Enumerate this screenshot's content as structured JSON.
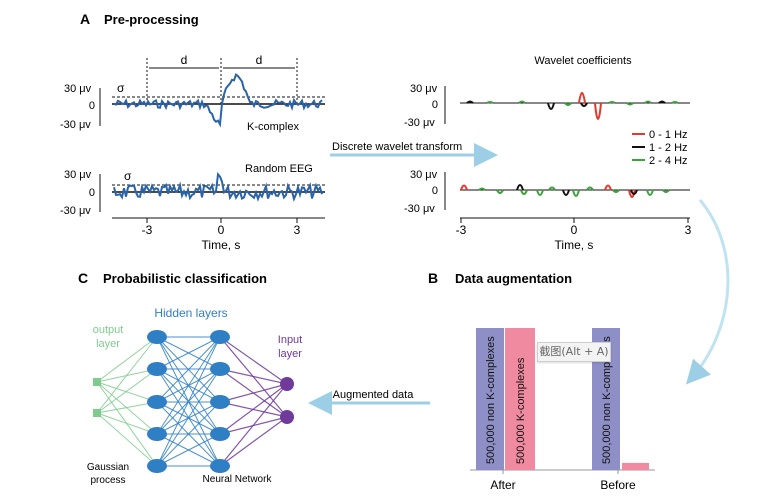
{
  "sections": {
    "a": {
      "letter": "A",
      "title": "Pre-processing"
    },
    "b": {
      "letter": "B",
      "title": "Data augmentation"
    },
    "c": {
      "letter": "C",
      "title": "Probabilistic classification"
    }
  },
  "preprocessing": {
    "distance_label": "d",
    "threshold_label": "σ",
    "y_ticks": [
      "30 μv",
      "0",
      "-30 μv"
    ],
    "x_ticks": [
      "-3",
      "0",
      "3"
    ],
    "x_axis_label": "Time, s",
    "kcomplex_label": "K-complex",
    "random_eeg_label": "Random EEG",
    "transform_label": "Discrete wavelet transform",
    "wavelet_title": "Wavelet coefficients",
    "legend": [
      {
        "label": "0 - 1 Hz",
        "color": "#e8372b"
      },
      {
        "label": "1 - 2 Hz",
        "color": "#111111"
      },
      {
        "label": "2 - 4 Hz",
        "color": "#3aa33a"
      }
    ],
    "signal_color": "#2a63a8"
  },
  "augmentation": {
    "bars": [
      {
        "label": "500,000 non K-complexes",
        "color": "#8e8fc7",
        "relative_height": 1.0
      },
      {
        "label": "500,000 K-complexes",
        "color": "#f08aa0",
        "relative_height": 1.0
      },
      {
        "label": "500,000 non K-complexes",
        "color": "#8e8fc7",
        "relative_height": 1.0
      },
      {
        "label": "",
        "color": "#f08aa0",
        "relative_height": 0.05
      }
    ],
    "group_after": "After",
    "group_before": "Before",
    "arrow_label": "Augmented data",
    "tooltip": "截图(Alt + A)"
  },
  "classification": {
    "output_label_line1": "output",
    "output_label_line2": "layer",
    "hidden_label": "Hidden layers",
    "input_label_line1": "Input",
    "input_label_line2": "layer",
    "gaussian_line1": "Gaussian",
    "gaussian_line2": "process",
    "network_label": "Neural Network",
    "colors": {
      "output": "#7ecb8e",
      "hidden": "#2f7fc4",
      "input": "#6f3a9a"
    }
  }
}
